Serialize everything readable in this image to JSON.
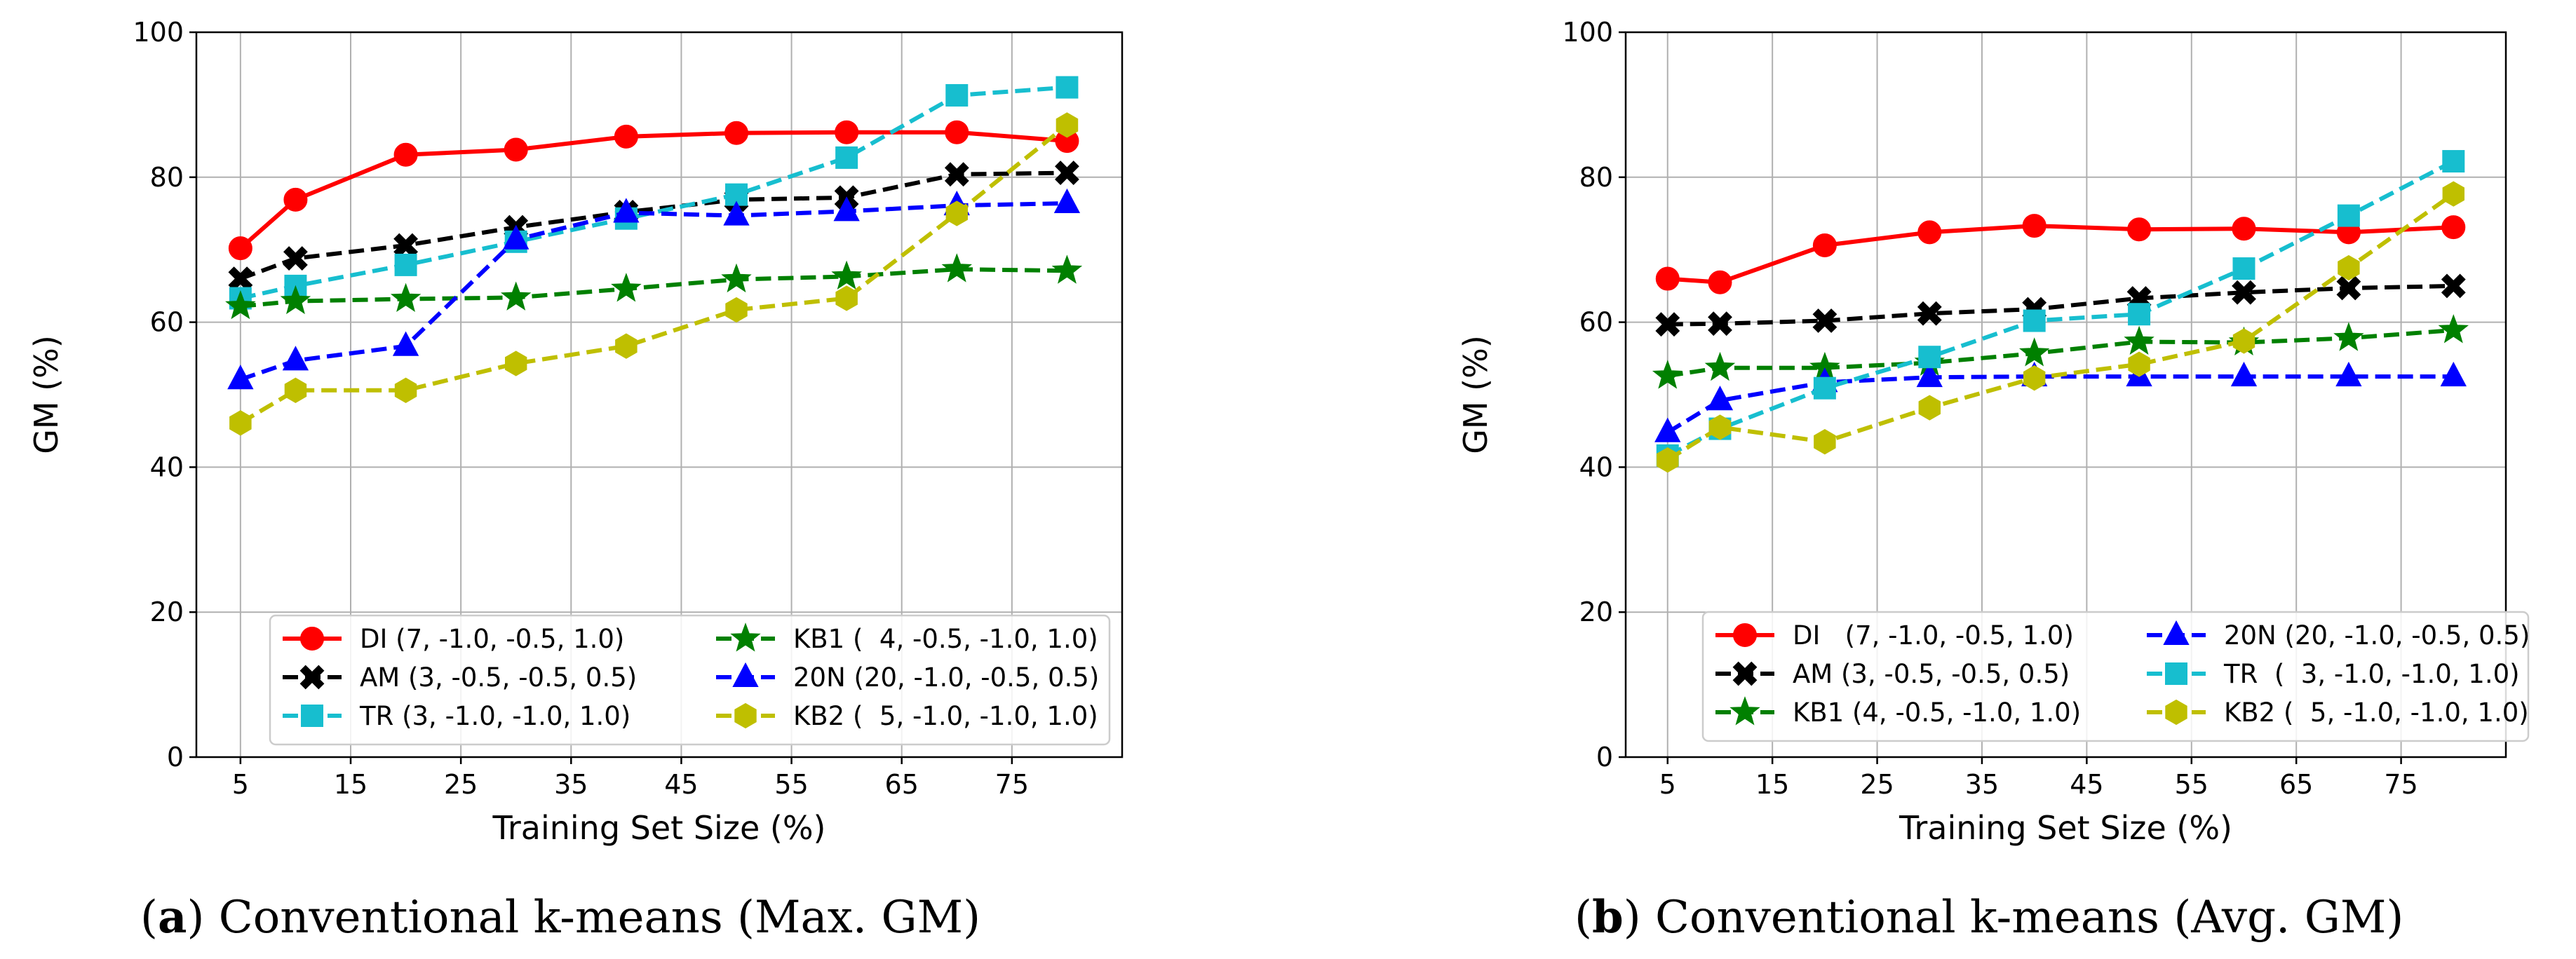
{
  "chart_data": [
    {
      "type": "line",
      "caption_letter": "a",
      "caption_text": ") Conventional k-means (Max. GM)",
      "xlabel": "Training Set Size (%)",
      "ylabel": "GM (%)",
      "xlim": [
        1,
        85
      ],
      "ylim": [
        0,
        100
      ],
      "xticks": [
        5,
        15,
        25,
        35,
        45,
        55,
        65,
        75
      ],
      "yticks": [
        0,
        20,
        40,
        60,
        80,
        100
      ],
      "x": [
        5,
        10,
        20,
        30,
        40,
        50,
        60,
        70,
        80
      ],
      "grid": true,
      "legend_position": "bottom-right",
      "legend_columns": 2,
      "series": [
        {
          "name": "DI",
          "params": "(7, -1.0, -0.5, 1.0)",
          "color": "#ff0000",
          "dashed": false,
          "marker": "circle",
          "values": [
            70.2,
            76.9,
            83.1,
            83.8,
            85.6,
            86.1,
            86.2,
            86.2,
            85.0
          ]
        },
        {
          "name": "AM",
          "params": "(3, -0.5, -0.5, 0.5)",
          "color": "#000000",
          "dashed": true,
          "marker": "x",
          "values": [
            66.0,
            68.8,
            70.6,
            73.1,
            75.2,
            76.9,
            77.2,
            80.4,
            80.6
          ]
        },
        {
          "name": "TR",
          "params": "(3, -1.0, -1.0, 1.0)",
          "color": "#17becf",
          "dashed": true,
          "marker": "square",
          "values": [
            63.3,
            65.0,
            67.9,
            71.1,
            74.3,
            77.6,
            82.7,
            91.3,
            92.4
          ]
        },
        {
          "name": "KB1",
          "params": "(  4, -0.5, -1.0, 1.0)",
          "color": "#008000",
          "dashed": true,
          "marker": "star",
          "values": [
            62.2,
            62.9,
            63.2,
            63.4,
            64.6,
            65.9,
            66.3,
            67.3,
            67.1
          ]
        },
        {
          "name": "20N",
          "params": "(20, -1.0, -0.5, 0.5)",
          "color": "#0000ff",
          "dashed": true,
          "marker": "triangle",
          "values": [
            52.1,
            54.7,
            56.7,
            71.4,
            75.1,
            74.7,
            75.3,
            76.1,
            76.4
          ]
        },
        {
          "name": "KB2",
          "params": "(  5, -1.0, -1.0, 1.0)",
          "color": "#bfbf00",
          "dashed": true,
          "marker": "hexagon",
          "values": [
            46.1,
            50.6,
            50.6,
            54.3,
            56.7,
            61.7,
            63.3,
            75.0,
            87.2
          ]
        }
      ]
    },
    {
      "type": "line",
      "caption_letter": "b",
      "caption_text": ") Conventional k-means (Avg. GM)",
      "xlabel": "Training Set Size (%)",
      "ylabel": "GM (%)",
      "xlim": [
        1,
        85
      ],
      "ylim": [
        0,
        100
      ],
      "xticks": [
        5,
        15,
        25,
        35,
        45,
        55,
        65,
        75
      ],
      "yticks": [
        0,
        20,
        40,
        60,
        80,
        100
      ],
      "x": [
        5,
        10,
        20,
        30,
        40,
        50,
        60,
        70,
        80
      ],
      "grid": true,
      "legend_position": "bottom-right",
      "legend_columns": 2,
      "series": [
        {
          "name": "DI",
          "params": "  (7, -1.0, -0.5, 1.0)",
          "color": "#ff0000",
          "dashed": false,
          "marker": "circle",
          "values": [
            66.0,
            65.5,
            70.6,
            72.4,
            73.3,
            72.8,
            72.9,
            72.4,
            73.1
          ]
        },
        {
          "name": "AM",
          "params": "(3, -0.5, -0.5, 0.5)",
          "color": "#000000",
          "dashed": true,
          "marker": "x",
          "values": [
            59.7,
            59.8,
            60.2,
            61.2,
            61.8,
            63.3,
            64.1,
            64.7,
            65.0
          ]
        },
        {
          "name": "KB1",
          "params": "(4, -0.5, -1.0, 1.0)",
          "color": "#008000",
          "dashed": true,
          "marker": "star",
          "values": [
            52.6,
            53.7,
            53.7,
            54.4,
            55.7,
            57.3,
            57.2,
            57.8,
            58.9
          ]
        },
        {
          "name": "20N",
          "params": "(20, -1.0, -0.5, 0.5)",
          "color": "#0000ff",
          "dashed": true,
          "marker": "triangle",
          "values": [
            44.8,
            49.2,
            51.7,
            52.4,
            52.5,
            52.5,
            52.5,
            52.5,
            52.5
          ]
        },
        {
          "name": "TR",
          "params": " (  3, -1.0, -1.0, 1.0)",
          "color": "#17becf",
          "dashed": true,
          "marker": "square",
          "values": [
            41.6,
            45.3,
            50.9,
            55.2,
            60.2,
            61.1,
            67.4,
            74.7,
            82.2
          ]
        },
        {
          "name": "KB2",
          "params": "(  5, -1.0, -1.0, 1.0)",
          "color": "#bfbf00",
          "dashed": true,
          "marker": "hexagon",
          "values": [
            41.0,
            45.5,
            43.5,
            48.2,
            52.3,
            54.2,
            57.4,
            67.5,
            77.7
          ]
        }
      ]
    }
  ]
}
